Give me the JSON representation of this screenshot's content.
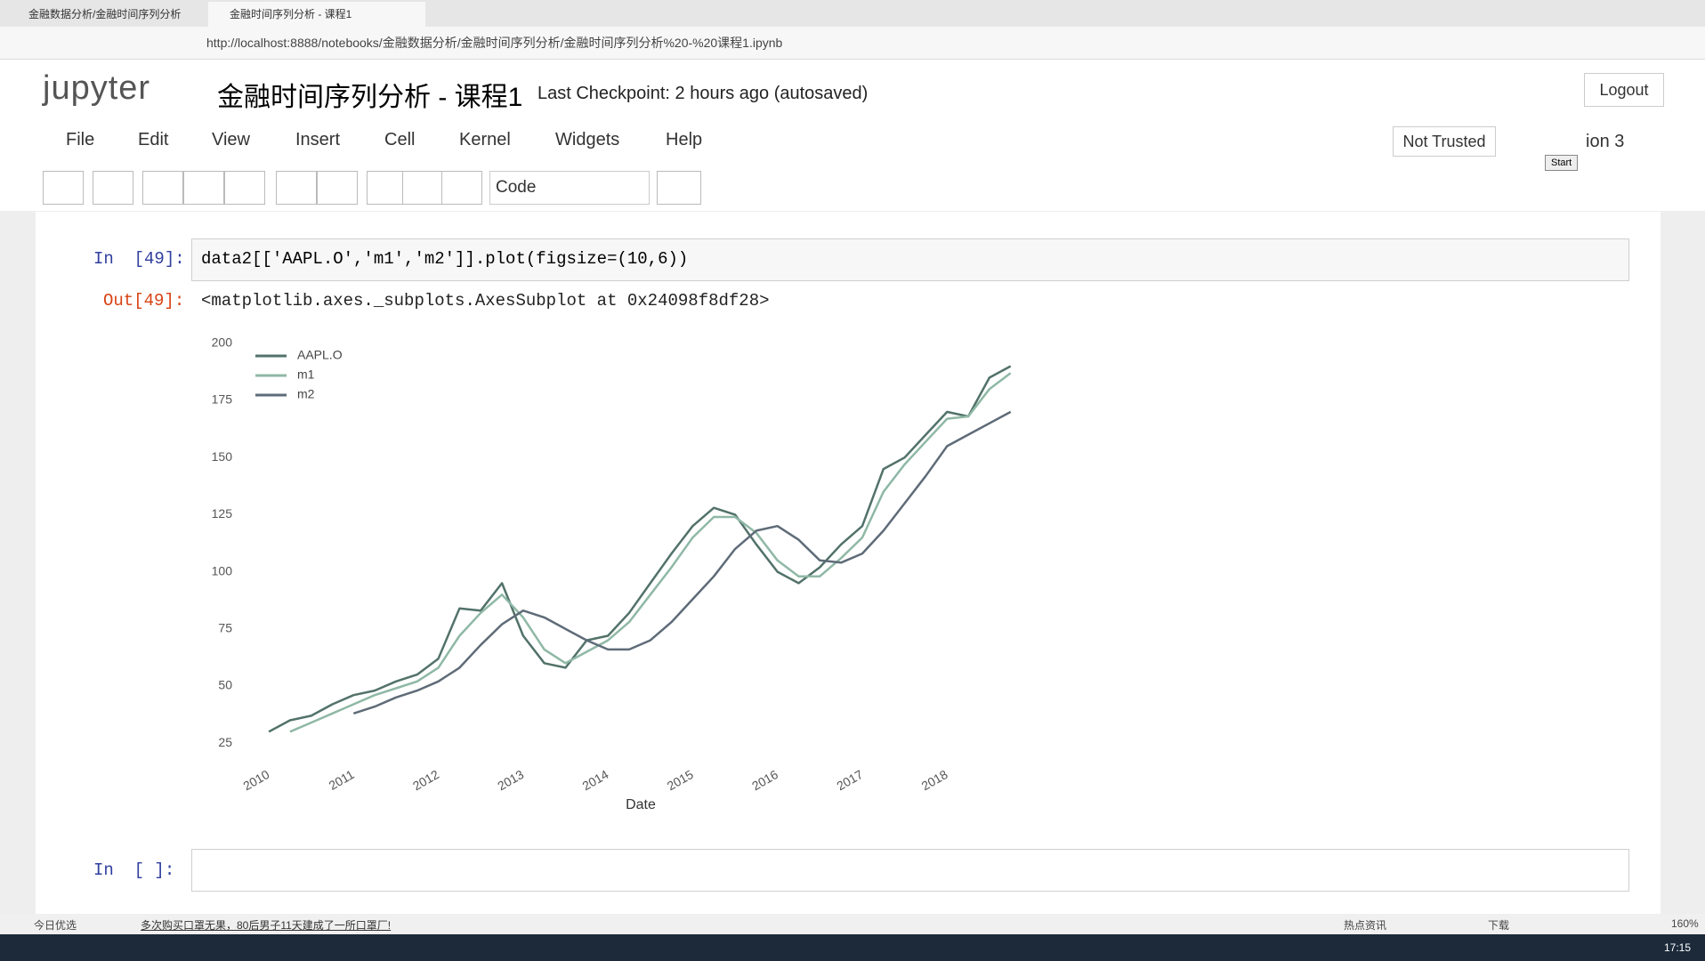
{
  "browser": {
    "tabs": [
      "金融数据分析/金融时间序列分析",
      "金融时间序列分析 - 课程1"
    ],
    "url": "http://localhost:8888/notebooks/金融数据分析/金融时间序列分析/金融时间序列分析%20-%20课程1.ipynb"
  },
  "header": {
    "logo": "jupyter",
    "title": "金融时间序列分析 - 课程1",
    "checkpoint": "Last Checkpoint: 2 hours ago (autosaved)",
    "logout": "Logout"
  },
  "menu": [
    "File",
    "Edit",
    "View",
    "Insert",
    "Cell",
    "Kernel",
    "Widgets",
    "Help"
  ],
  "notebook_status": {
    "trusted": "Not Trusted",
    "kernel": "ion 3",
    "tooltip": "Start"
  },
  "toolbar": {
    "cell_type": "Code"
  },
  "cells": [
    {
      "prompt": "In  [49]:",
      "code": "data2[['AAPL.O','m1','m2']].plot(figsize=(10,6))",
      "out_prompt": "Out[49]:",
      "output": "<matplotlib.axes._subplots.AxesSubplot at 0x24098f8df28>"
    },
    {
      "prompt": "In  [ ]:"
    }
  ],
  "chart_data": {
    "type": "line",
    "xlabel": "Date",
    "x": [
      2010,
      2010.25,
      2010.5,
      2010.75,
      2011,
      2011.25,
      2011.5,
      2011.75,
      2012,
      2012.25,
      2012.5,
      2012.75,
      2013,
      2013.25,
      2013.5,
      2013.75,
      2014,
      2014.25,
      2014.5,
      2014.75,
      2015,
      2015.25,
      2015.5,
      2015.75,
      2016,
      2016.25,
      2016.5,
      2016.75,
      2017,
      2017.25,
      2017.5,
      2017.75,
      2018,
      2018.25,
      2018.5,
      2018.75
    ],
    "series": [
      {
        "name": "AAPL.O",
        "color": "#52726a",
        "values": [
          30,
          35,
          37,
          42,
          46,
          48,
          52,
          55,
          62,
          84,
          83,
          95,
          72,
          60,
          58,
          70,
          72,
          82,
          95,
          108,
          120,
          128,
          125,
          112,
          100,
          95,
          102,
          112,
          120,
          145,
          150,
          160,
          170,
          168,
          185,
          190
        ]
      },
      {
        "name": "m1",
        "color": "#8fb8a6",
        "values": [
          null,
          30,
          34,
          38,
          42,
          46,
          49,
          52,
          58,
          72,
          82,
          90,
          80,
          66,
          60,
          65,
          70,
          78,
          90,
          102,
          115,
          124,
          124,
          117,
          105,
          98,
          98,
          106,
          115,
          135,
          147,
          157,
          167,
          168,
          180,
          187
        ]
      },
      {
        "name": "m2",
        "color": "#5e6b78",
        "values": [
          null,
          null,
          null,
          null,
          38,
          41,
          45,
          48,
          52,
          58,
          68,
          77,
          83,
          80,
          75,
          70,
          66,
          66,
          70,
          78,
          88,
          98,
          110,
          118,
          120,
          114,
          105,
          104,
          108,
          118,
          130,
          142,
          155,
          160,
          165,
          170
        ]
      }
    ],
    "xlim": [
      2009.8,
      2018.9
    ],
    "xticks": [
      2010,
      2011,
      2012,
      2013,
      2014,
      2015,
      2016,
      2017,
      2018
    ],
    "ylim": [
      20,
      205
    ],
    "yticks": [
      25,
      50,
      75,
      100,
      125,
      150,
      175,
      200
    ],
    "grid": false,
    "legend": "upper-left"
  },
  "status_bar": {
    "news": "今日优选",
    "headline": "多次购买口罩无果，80后男子11天建成了一所口罩厂!",
    "hot": "热点资讯",
    "download": "下载",
    "zoom": "160%"
  },
  "taskbar": {
    "time": "17:15"
  }
}
